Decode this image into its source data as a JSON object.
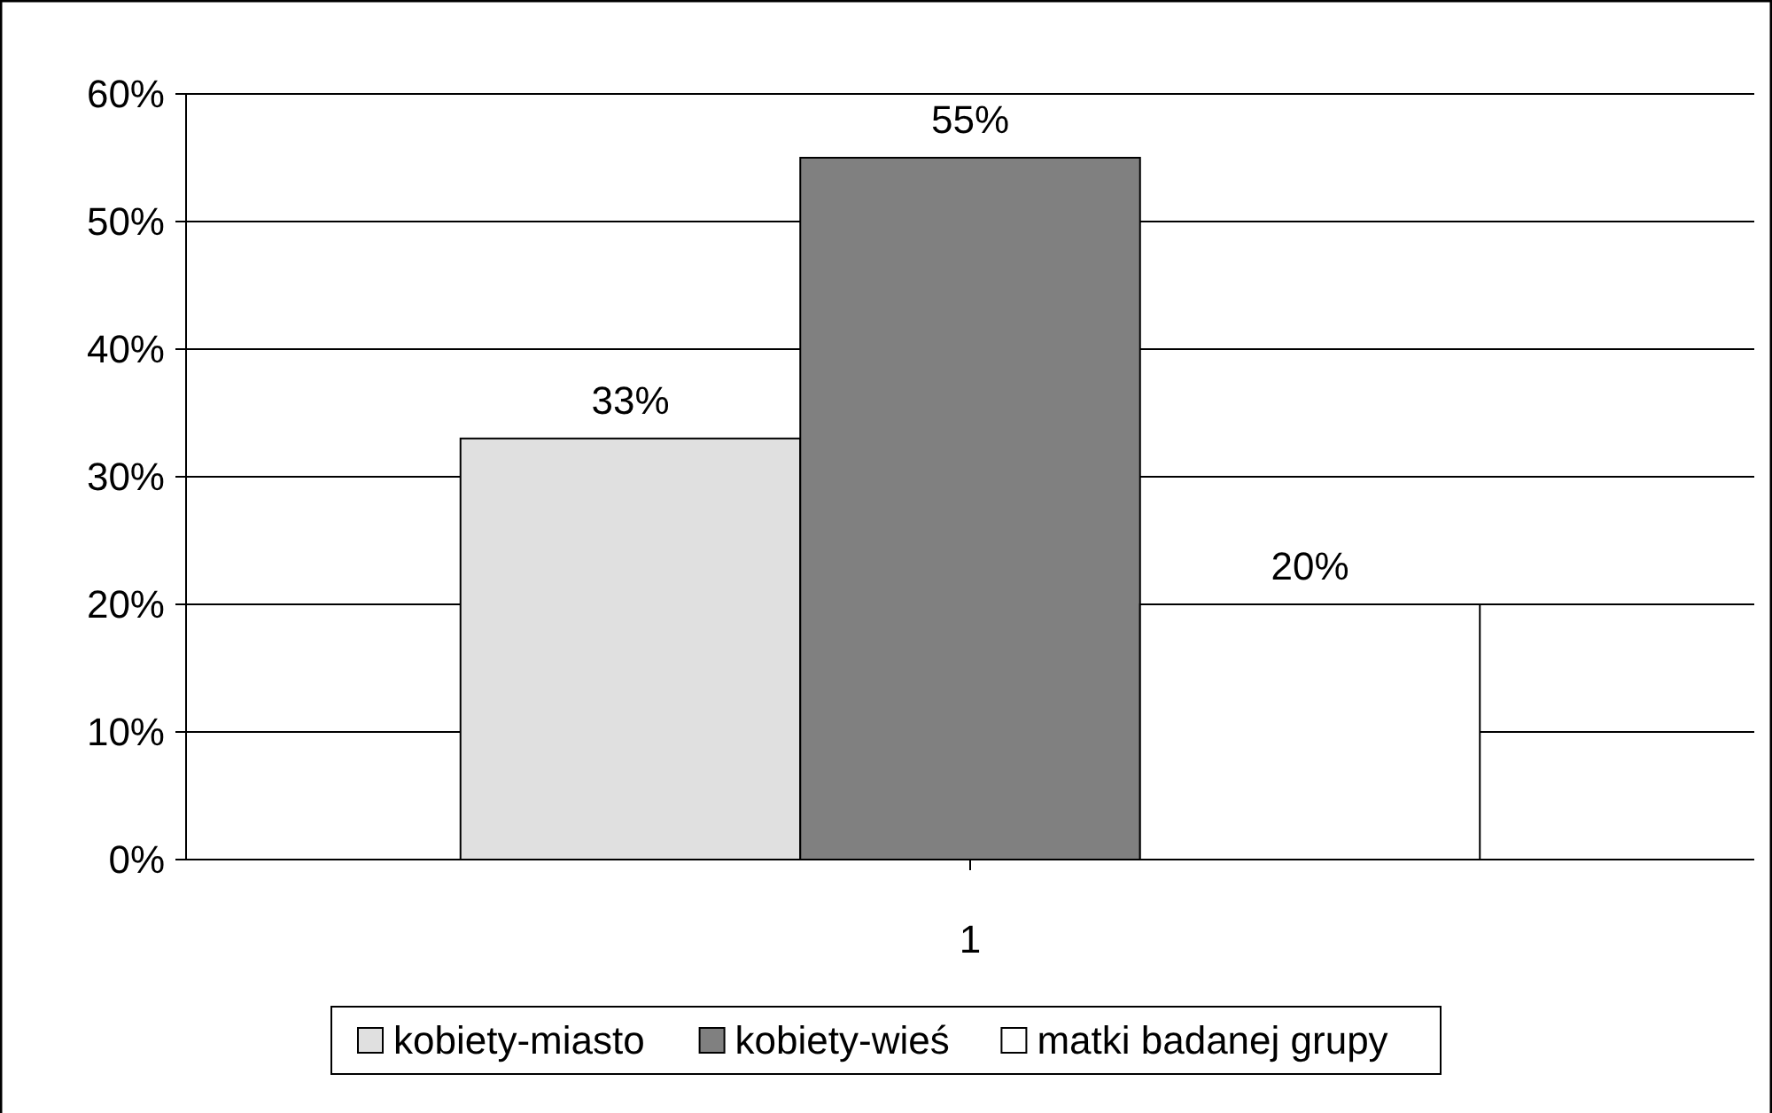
{
  "chart_data": {
    "type": "bar",
    "categories": [
      "1"
    ],
    "series": [
      {
        "name": "kobiety-miasto",
        "color": "#e0e0e0",
        "values": [
          33
        ],
        "value_labels": [
          "33%"
        ]
      },
      {
        "name": "kobiety-wieś",
        "color": "#808080",
        "values": [
          55
        ],
        "value_labels": [
          "55%"
        ]
      },
      {
        "name": "matki badanej grupy",
        "color": "#ffffff",
        "values": [
          20
        ],
        "value_labels": [
          "20%"
        ]
      }
    ],
    "ylim": [
      0,
      60
    ],
    "yticks": [
      {
        "value": 0,
        "label": "0%"
      },
      {
        "value": 10,
        "label": "10%"
      },
      {
        "value": 20,
        "label": "20%"
      },
      {
        "value": 30,
        "label": "30%"
      },
      {
        "value": 40,
        "label": "40%"
      },
      {
        "value": 50,
        "label": "50%"
      },
      {
        "value": 60,
        "label": "60%"
      }
    ],
    "grid": "y",
    "legend": "bottom"
  }
}
